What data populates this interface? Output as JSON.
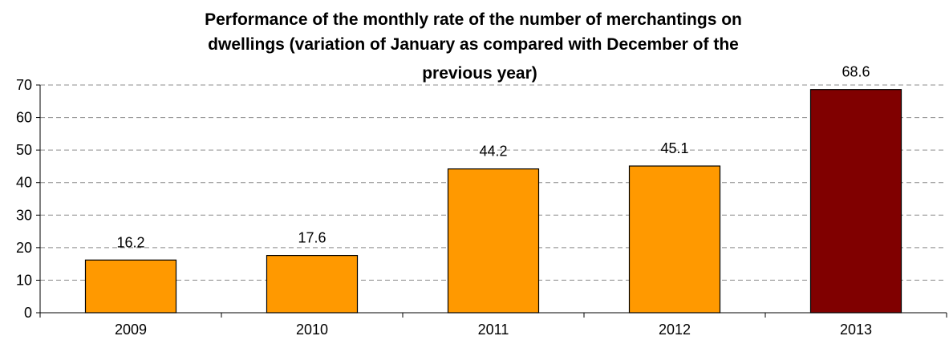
{
  "chart_data": {
    "type": "bar",
    "title": "Performance of the monthly rate of the number of merchantings on dwellings (variation of January as compared with December of the previous year)",
    "title_lines": [
      "Performance of the monthly rate of the number of merchantings on",
      "dwellings (variation of January as compared with December of the",
      "previous year)"
    ],
    "categories": [
      "2009",
      "2010",
      "2011",
      "2012",
      "2013"
    ],
    "values": [
      16.2,
      17.6,
      44.2,
      45.1,
      68.6
    ],
    "value_labels": [
      "16.2",
      "17.6",
      "44.2",
      "45.1",
      "68.6"
    ],
    "bar_colors": [
      "#FF9900",
      "#FF9900",
      "#FF9900",
      "#FF9900",
      "#800000"
    ],
    "xlabel": "",
    "ylabel": "",
    "ylim": [
      0,
      70
    ],
    "y_ticks": [
      0,
      10,
      20,
      30,
      40,
      50,
      60,
      70
    ],
    "grid": "horizontal-dashed",
    "legend": "none"
  }
}
